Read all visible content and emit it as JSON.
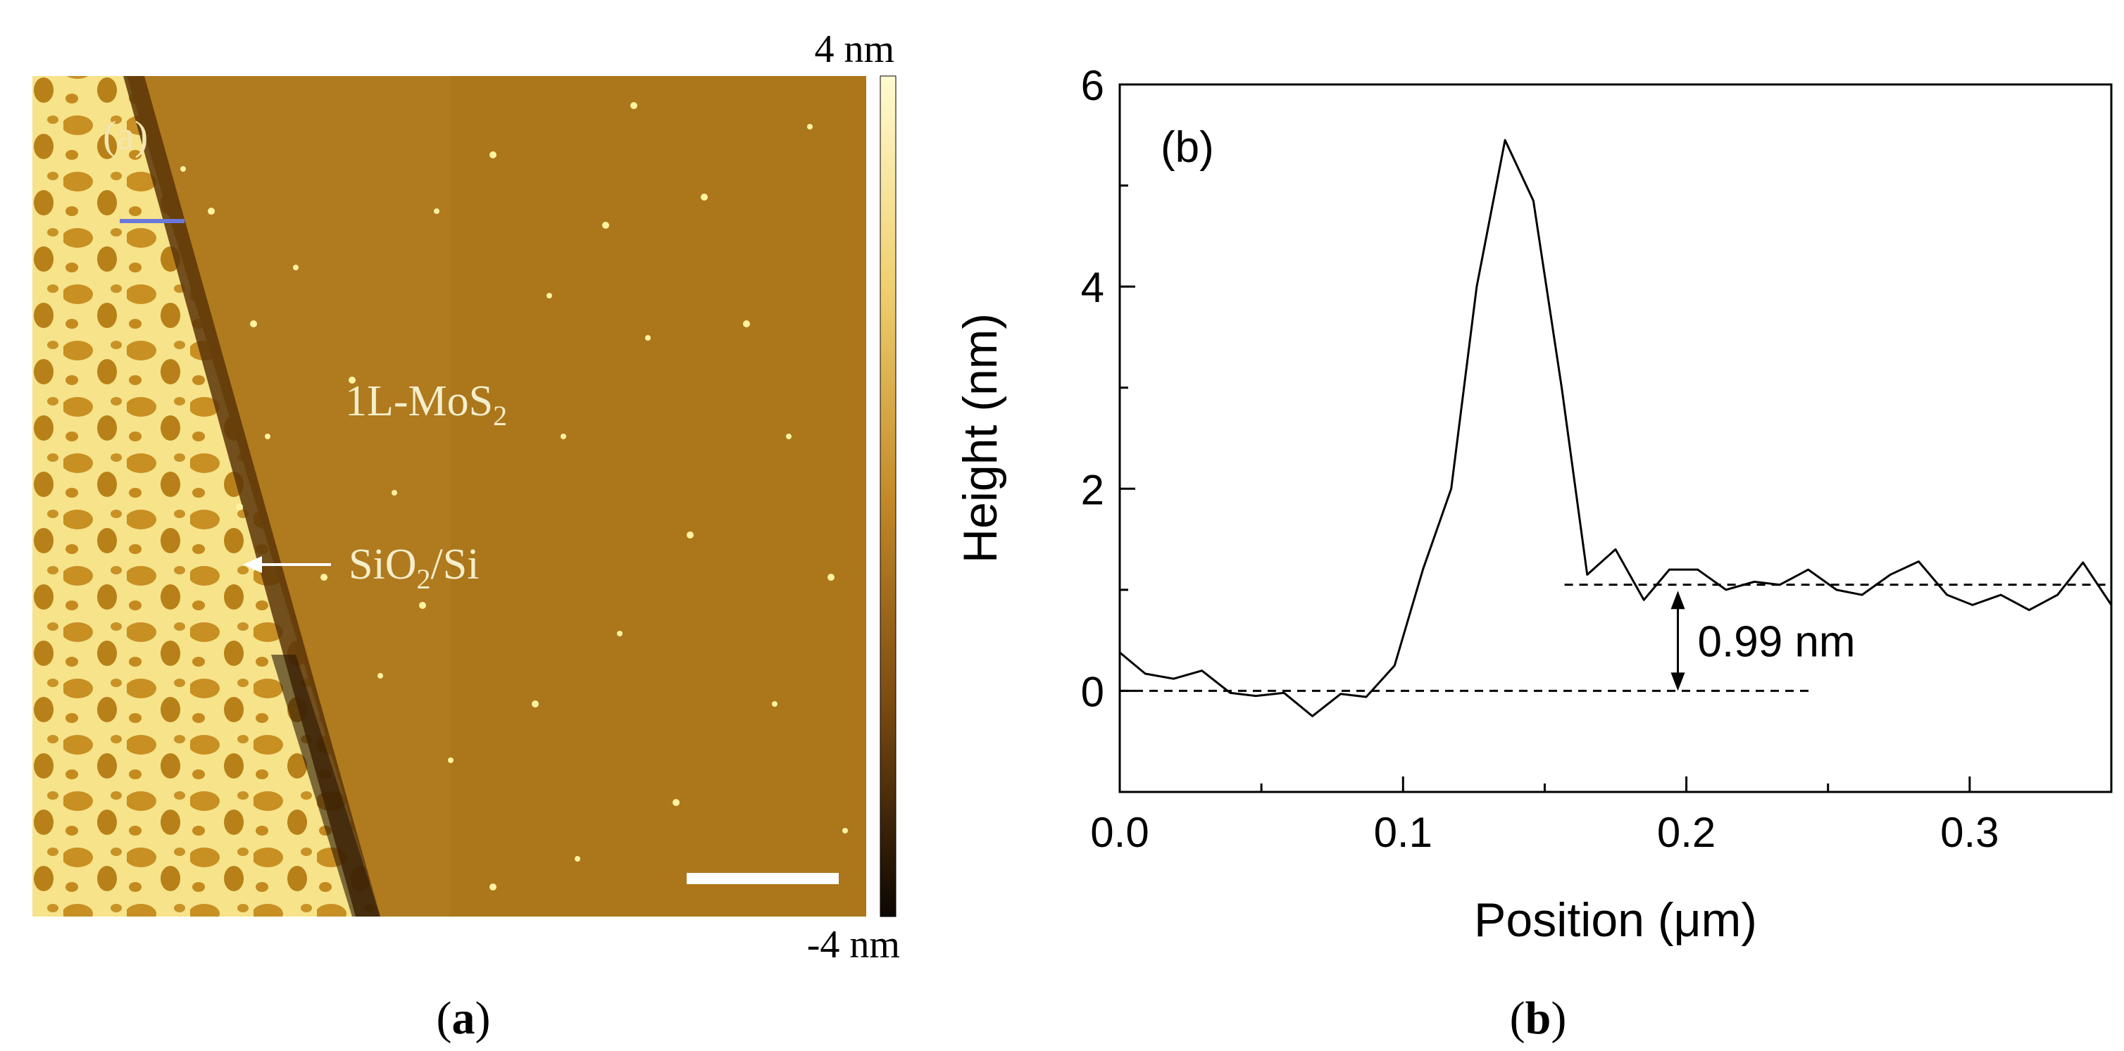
{
  "figure": {
    "caption_a": "(a)",
    "caption_a_letter": "a",
    "caption_b": "(b)",
    "caption_b_letter": "b"
  },
  "afm_image": {
    "panel_label": "(a)",
    "colorbar_max": "4 nm",
    "colorbar_min": "-4 nm",
    "region_label_main": "1L-MoS",
    "region_label_main_sub": "2",
    "arrow_label_pre": "SiO",
    "arrow_label_sub": "2",
    "arrow_label_post": "/Si",
    "colors": {
      "substrate": "#b07a1e",
      "substrate_dark": "#9a6814",
      "flake_bright": "#f6e38a",
      "edge_dark": "#5a3508",
      "profile_line": "#6a78d8",
      "scalebar": "#ffffff"
    }
  },
  "chart_data": {
    "type": "line",
    "panel_label": "(b)",
    "title": "",
    "xlabel": "Position (μm)",
    "ylabel": "Height (nm)",
    "xlim": [
      0.0,
      0.35
    ],
    "ylim": [
      -1.0,
      6.0
    ],
    "x_ticks": [
      0.0,
      0.1,
      0.2,
      0.3
    ],
    "x_tick_labels": [
      "0.0",
      "0.1",
      "0.2",
      "0.3"
    ],
    "y_ticks": [
      0,
      2,
      4,
      6
    ],
    "y_tick_labels": [
      "0",
      "2",
      "4",
      "6"
    ],
    "series": [
      {
        "name": "height profile",
        "x": [
          0.0,
          0.009,
          0.019,
          0.029,
          0.039,
          0.048,
          0.058,
          0.068,
          0.078,
          0.087,
          0.097,
          0.107,
          0.117,
          0.126,
          0.136,
          0.146,
          0.156,
          0.165,
          0.175,
          0.185,
          0.194,
          0.204,
          0.214,
          0.224,
          0.233,
          0.243,
          0.253,
          0.262,
          0.272,
          0.282,
          0.292,
          0.301,
          0.311,
          0.321,
          0.331,
          0.34,
          0.35
        ],
        "values": [
          0.38,
          0.17,
          0.12,
          0.2,
          -0.02,
          -0.05,
          -0.02,
          -0.25,
          -0.03,
          -0.06,
          0.25,
          1.2,
          2.0,
          4.0,
          5.45,
          4.85,
          3.0,
          1.15,
          1.4,
          0.9,
          1.2,
          1.2,
          1.0,
          1.08,
          1.05,
          1.2,
          1.0,
          0.95,
          1.15,
          1.28,
          0.95,
          0.85,
          0.95,
          0.8,
          0.95,
          1.27,
          0.85
        ]
      }
    ],
    "reference_lines": [
      {
        "y": 0.0,
        "x_start": 0.0,
        "x_end": 0.245
      },
      {
        "y": 1.05,
        "x_start": 0.157,
        "x_end": 0.35
      }
    ],
    "annotation": {
      "label": "0.99 nm",
      "x": 0.197,
      "y_from": 0.0,
      "y_to": 0.99
    }
  }
}
